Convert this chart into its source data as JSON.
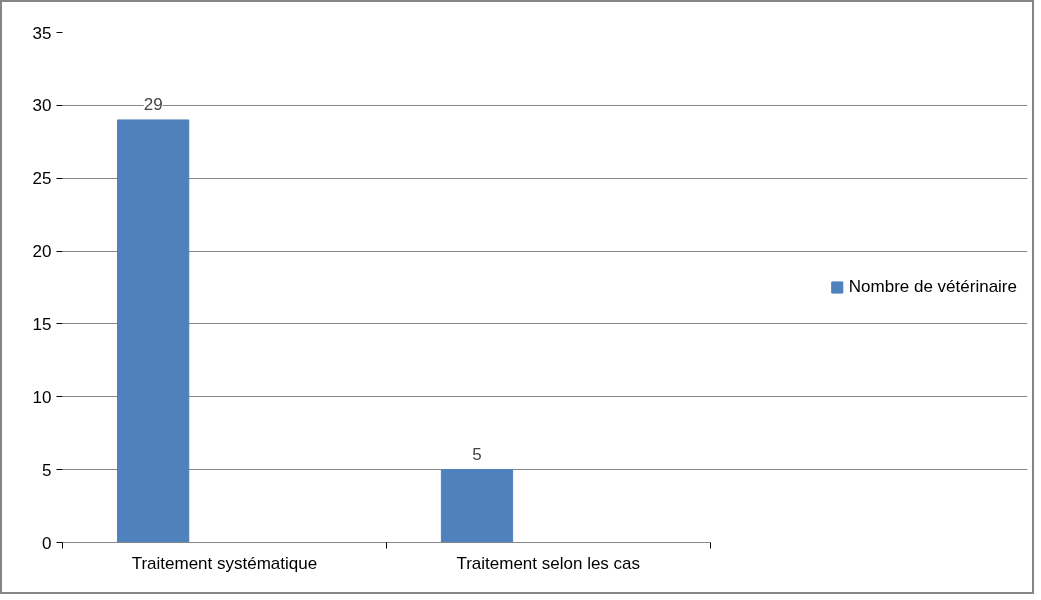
{
  "chart_data": {
    "type": "bar",
    "categories": [
      "Traitement systématique",
      "Traitement selon les cas"
    ],
    "series": [
      {
        "name": "Nombre de vétérinaire",
        "color": "#4f81bd",
        "values": [
          29,
          5
        ]
      }
    ],
    "ylim": [
      0,
      35
    ],
    "yticks": [
      0,
      5,
      10,
      15,
      20,
      25,
      30,
      35
    ],
    "grid": "y",
    "legend": "right",
    "data_labels": true
  }
}
